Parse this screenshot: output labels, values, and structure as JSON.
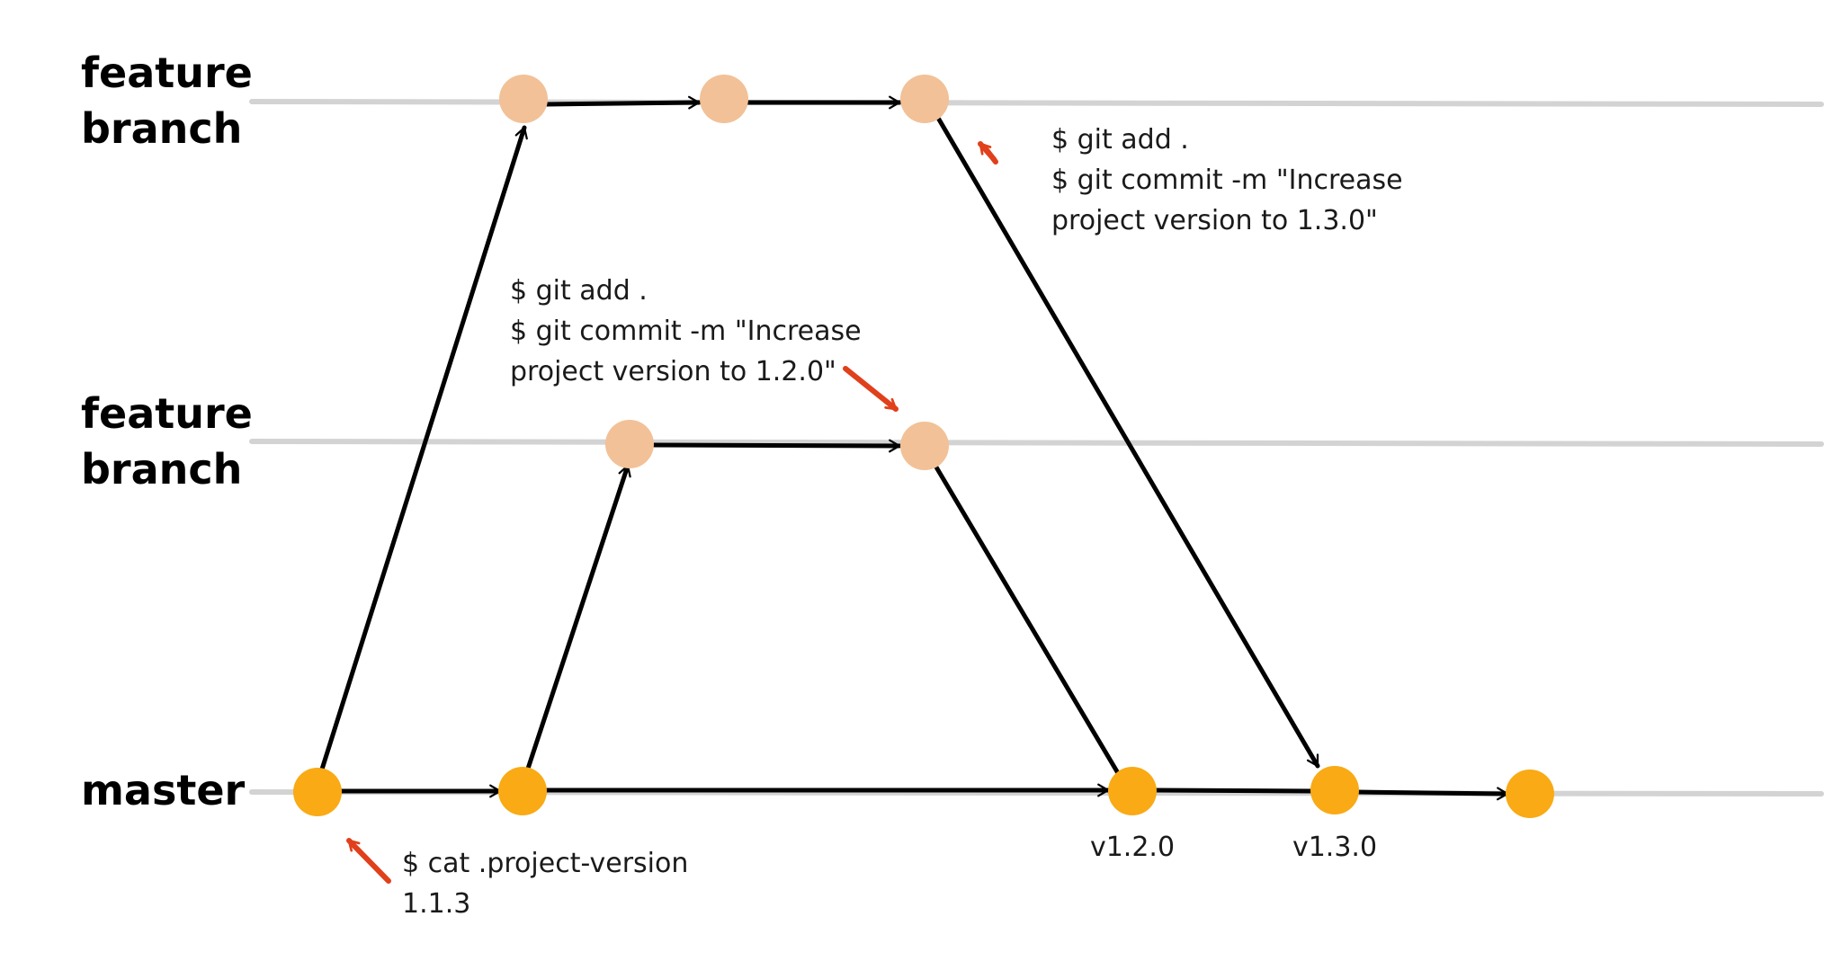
{
  "lanes": {
    "feature_top": "feature\nbranch",
    "feature_mid": "feature\nbranch",
    "master": "master"
  },
  "notes": {
    "top": [
      "$ git add .",
      "$ git commit -m \"Increase",
      "project version to 1.3.0\""
    ],
    "mid": [
      "$ git add .",
      "$ git commit -m \"Increase",
      "project version to 1.2.0\""
    ],
    "bottom": [
      "$ cat .project-version",
      "1.1.3"
    ]
  },
  "tags": {
    "v120": "v1.2.0",
    "v130": "v1.3.0"
  },
  "colors": {
    "master_commit": "#f9aa14",
    "feature_commit": "#f2c197",
    "lane": "#d3d3d3",
    "edge": "#000000",
    "pointer": "#e0401b"
  }
}
